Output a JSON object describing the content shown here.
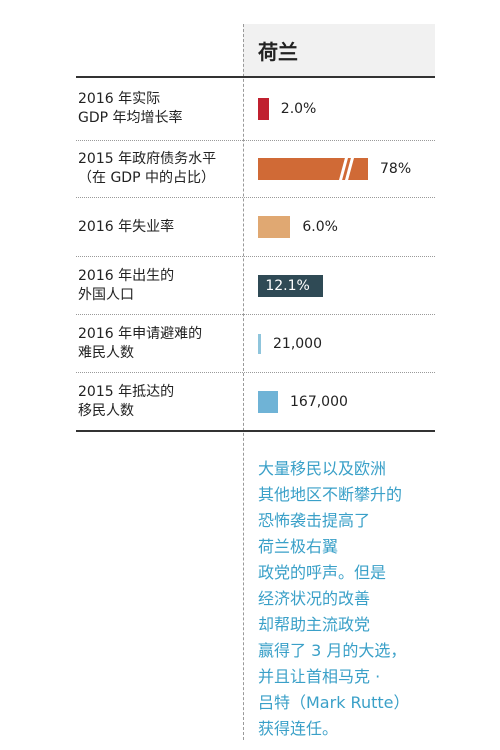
{
  "header": {
    "country": "荷兰"
  },
  "chart_data": {
    "type": "bar",
    "rows": [
      {
        "label_lines": [
          "2016 年实际",
          "GDP 年均增长率"
        ],
        "value": 2.0,
        "display": "2.0%",
        "color": "#c0202f"
      },
      {
        "label_lines": [
          "2015 年政府债务水平",
          "（在 GDP 中的占比）"
        ],
        "value": 78,
        "display": "78%",
        "color": "#d06a36",
        "axis_break": true
      },
      {
        "label_lines": [
          "2016 年失业率"
        ],
        "value": 6.0,
        "display": "6.0%",
        "color": "#e0a872"
      },
      {
        "label_lines": [
          "2016 年出生的",
          "外国人口"
        ],
        "value": 12.1,
        "display": "12.1%",
        "color": "#2f4a55",
        "label_inside": true
      },
      {
        "label_lines": [
          "2016 年申请避难的",
          "难民人数"
        ],
        "value": 21000,
        "display": "21,000",
        "color": "#8fc5dc"
      },
      {
        "label_lines": [
          "2015 年抵达的",
          "移民人数"
        ],
        "value": 167000,
        "display": "167,000",
        "color": "#6fb3d6"
      }
    ]
  },
  "note": {
    "lines": [
      "大量移民以及欧洲",
      "其他地区不断攀升的",
      "恐怖袭击提高了",
      "荷兰极右翼",
      "政党的呼声。但是",
      "经济状况的改善",
      "却帮助主流政党",
      "赢得了 3 月的大选，",
      "并且让首相马克 ·",
      "吕特（Mark Rutte）",
      "获得连任。"
    ]
  }
}
